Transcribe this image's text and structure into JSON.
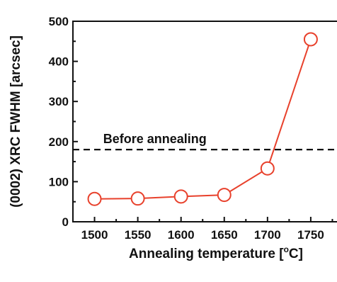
{
  "chart_data": {
    "type": "line",
    "title": "",
    "xlabel": "Annealing temperature [",
    "xlabel_unit_sup": "o",
    "xlabel_unit": "C]",
    "ylabel": "(0002) XRC FWHM [arcsec]",
    "xlim": [
      1475,
      1800
    ],
    "ylim": [
      0,
      500
    ],
    "x_ticks": [
      1500,
      1550,
      1600,
      1650,
      1700,
      1750
    ],
    "y_ticks": [
      0,
      100,
      200,
      300,
      400,
      500
    ],
    "series": [
      {
        "color": "#e8412c",
        "marker": "open-circle",
        "x": [
          1500,
          1550,
          1600,
          1650,
          1700,
          1750
        ],
        "y": [
          57,
          58,
          63,
          67,
          133,
          455
        ]
      }
    ],
    "reference_line": {
      "label": "Before annealing",
      "y": 180,
      "style": "dashed",
      "color": "#111111"
    },
    "grid": false,
    "legend": "none"
  }
}
